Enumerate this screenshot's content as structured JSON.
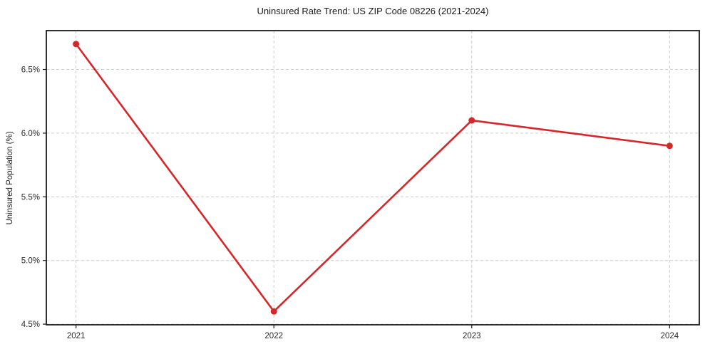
{
  "chart_data": {
    "type": "line",
    "title": "Uninsured Rate Trend: US ZIP Code 08226 (2021-2024)",
    "xlabel": "",
    "ylabel": "Uninsured Population (%)",
    "x": [
      2021,
      2022,
      2023,
      2024
    ],
    "x_tick_labels": [
      "2021",
      "2022",
      "2023",
      "2024"
    ],
    "series": [
      {
        "name": "uninsured-rate",
        "values": [
          6.7,
          4.6,
          6.1,
          5.9
        ],
        "color": "#d62728",
        "marker": "circle"
      }
    ],
    "y_ticks": [
      4.5,
      5.0,
      5.5,
      6.0,
      6.5
    ],
    "y_tick_labels": [
      "4.5%",
      "5.0%",
      "5.5%",
      "6.0%",
      "6.5%"
    ],
    "xlim": [
      2020.85,
      2024.15
    ],
    "ylim": [
      4.495,
      6.805
    ],
    "grid": "on",
    "grid_style": "dashed",
    "grid_color": "#cccccc",
    "axis_color": "#1a1a1a",
    "text_color": "#2b2b2b",
    "background_color": "#ffffff",
    "legend": "none"
  }
}
